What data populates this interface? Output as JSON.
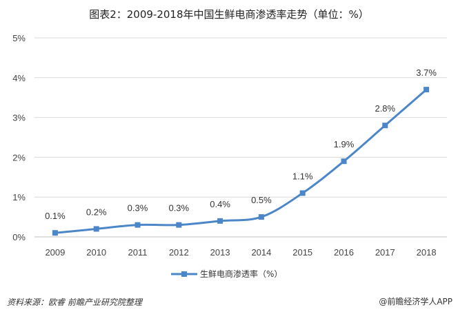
{
  "chart_data": {
    "type": "line",
    "title": "图表2：2009-2018年中国生鲜电商渗透率走势（单位：%）",
    "x": [
      "2009",
      "2010",
      "2011",
      "2012",
      "2013",
      "2014",
      "2015",
      "2016",
      "2017",
      "2018"
    ],
    "series": [
      {
        "name": "生鲜电商渗透率（%）",
        "values": [
          0.1,
          0.2,
          0.3,
          0.3,
          0.4,
          0.5,
          1.1,
          1.9,
          2.8,
          3.7
        ],
        "data_labels": [
          "0.1%",
          "0.2%",
          "0.3%",
          "0.3%",
          "0.4%",
          "0.5%",
          "1.1%",
          "1.9%",
          "2.8%",
          "3.7%"
        ],
        "color": "#4a86c8"
      }
    ],
    "y_ticks": [
      "0%",
      "1%",
      "2%",
      "3%",
      "4%",
      "5%"
    ],
    "ylim": [
      0,
      5
    ],
    "grid": true,
    "legend_position": "bottom"
  },
  "footer": {
    "source": "资料来源：欧睿  前瞻产业研究院整理",
    "brand": "@前瞻经济学人APP"
  }
}
